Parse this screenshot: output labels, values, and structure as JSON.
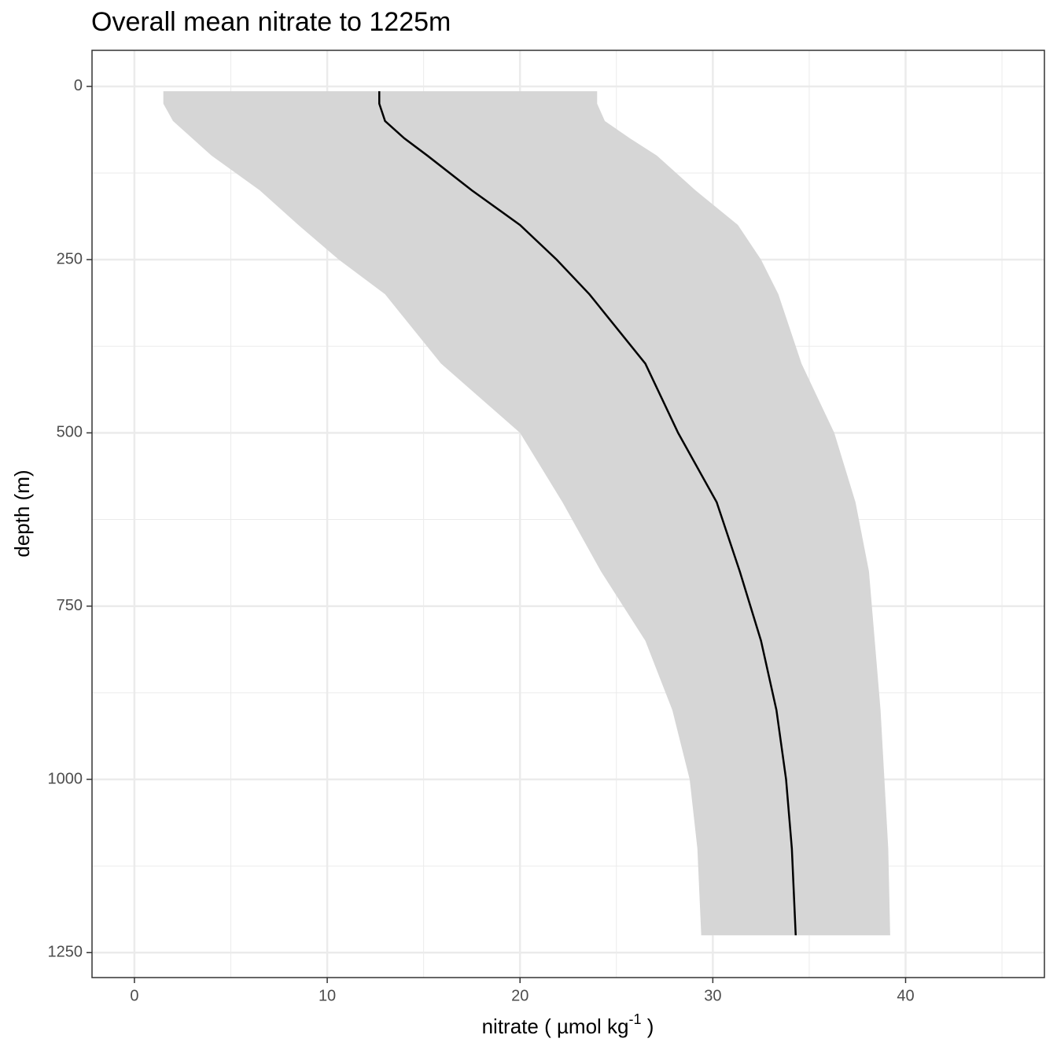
{
  "chart_data": {
    "type": "line",
    "title": "Overall mean nitrate to 1225m",
    "x_label": {
      "text": "nitrate ( µmol kg",
      "superscript": "-1",
      "end": " )"
    },
    "y_label": "depth (m)",
    "y": [
      7,
      25,
      50,
      75,
      100,
      150,
      200,
      250,
      300,
      400,
      500,
      600,
      700,
      800,
      900,
      1000,
      1100,
      1225
    ],
    "series": [
      {
        "color": "#000000",
        "values": [
          12.7,
          12.7,
          13.0,
          14.0,
          15.2,
          17.5,
          20.0,
          21.9,
          23.6,
          26.5,
          28.2,
          30.2,
          31.4,
          32.5,
          33.3,
          33.8,
          34.1,
          34.3
        ]
      }
    ],
    "ribbon": {
      "color": "#d6d6d6",
      "lower": [
        1.5,
        1.5,
        2.0,
        3.0,
        4.0,
        6.5,
        8.5,
        10.6,
        13.0,
        15.9,
        20.0,
        22.2,
        24.2,
        26.5,
        27.9,
        28.8,
        29.2,
        29.4
      ],
      "upper": [
        24.0,
        24.0,
        24.4,
        25.7,
        27.1,
        29.1,
        31.3,
        32.5,
        33.4,
        34.6,
        36.3,
        37.4,
        38.1,
        38.4,
        38.7,
        38.9,
        39.1,
        39.2
      ]
    },
    "xlim": [
      -2.2,
      47.2
    ],
    "ylim": [
      -52,
      1286
    ],
    "y_reversed": true,
    "xticks": [
      0,
      10,
      20,
      30,
      40
    ],
    "yticks": [
      0,
      250,
      500,
      750,
      1000,
      1250
    ],
    "x_minor_grid": [
      5,
      15,
      25,
      35,
      45
    ],
    "y_minor_grid": [
      125,
      375,
      625,
      875,
      1125
    ],
    "grid": true
  }
}
